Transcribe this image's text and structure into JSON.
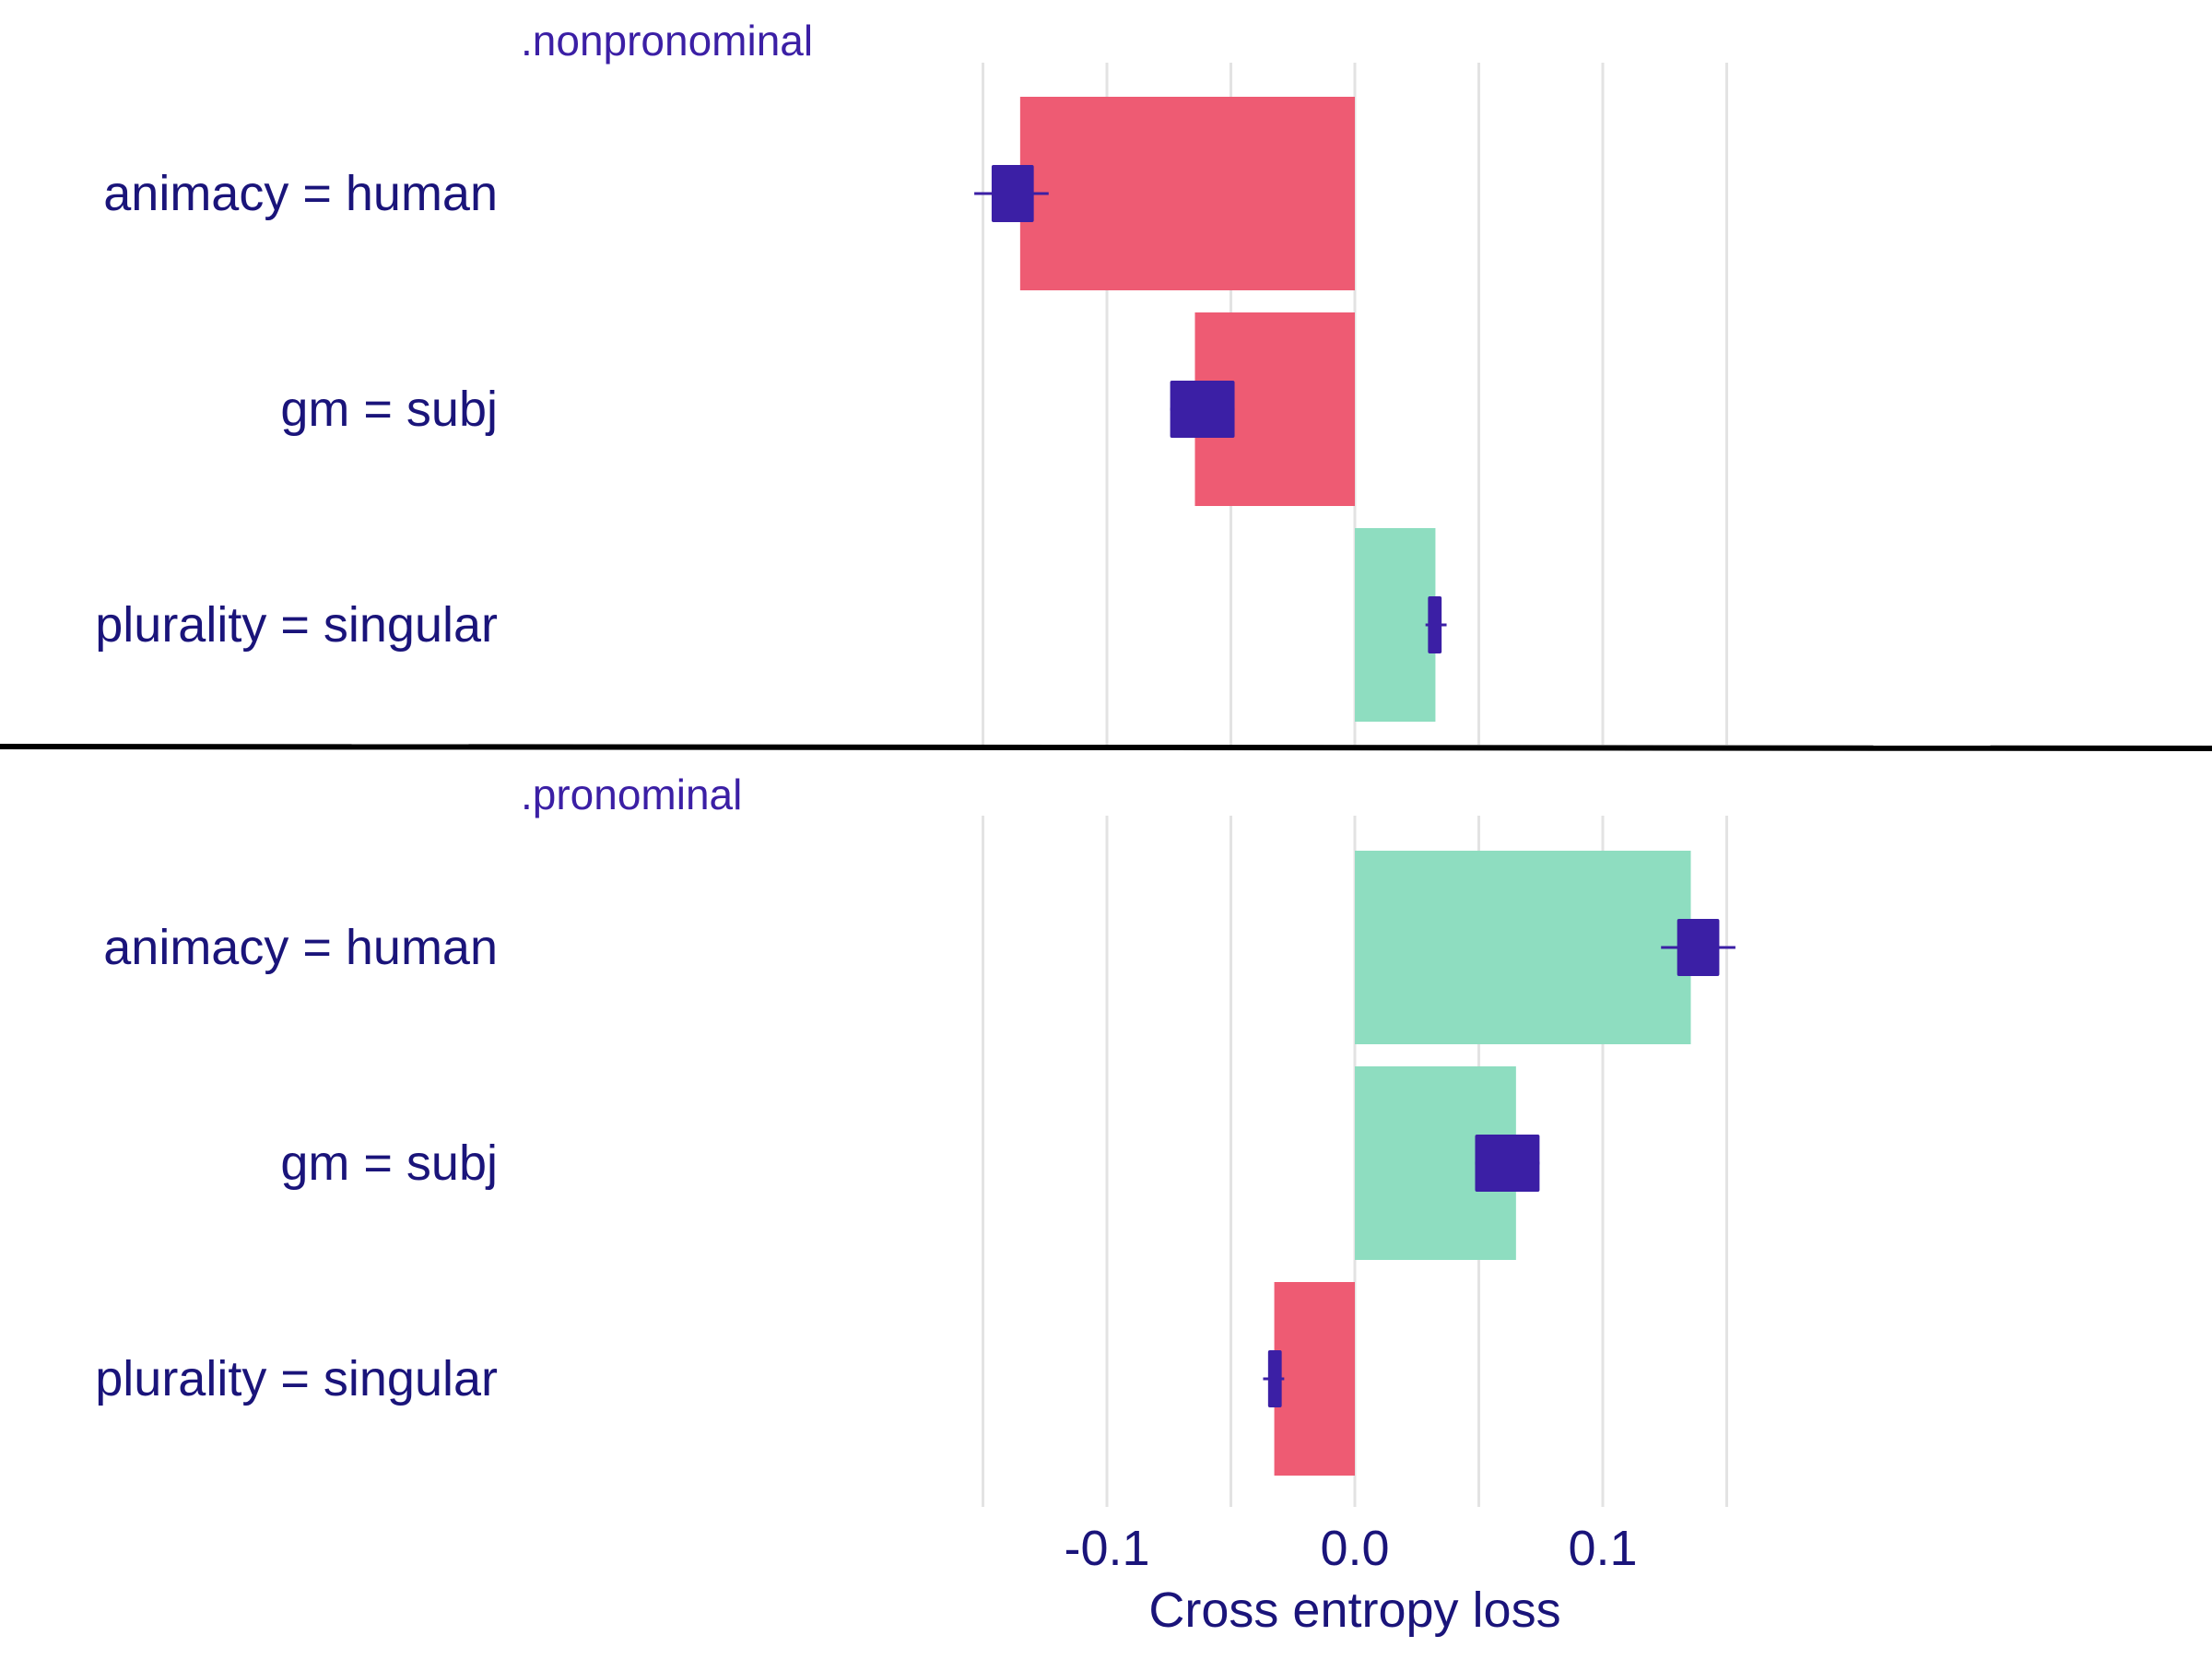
{
  "colors": {
    "negative": "#EE5B73",
    "positive": "#8EDDC0",
    "boxplot": "#3B1FA5",
    "label": "#1A147A",
    "facet_title": "#3B1FA5",
    "grid": "#E3E3E3",
    "divider": "#000000"
  },
  "chart_data": {
    "type": "bar",
    "orientation": "horizontal",
    "xlabel": "Cross entropy loss",
    "xlim": [
      -0.15,
      0.15
    ],
    "ticks": [
      {
        "value": -0.1,
        "label": "-0.1"
      },
      {
        "value": 0.0,
        "label": "0.0"
      },
      {
        "value": 0.1,
        "label": "0.1"
      }
    ],
    "minor_gridlines": [
      -0.15,
      -0.05,
      0.05,
      0.15
    ],
    "grid": true,
    "panels": [
      {
        "title": ".nonpronominal",
        "bars": [
          {
            "label": "animacy = human",
            "value": -0.135,
            "box": {
              "q1": -0.1465,
              "q3": -0.1295,
              "min": -0.1535,
              "max": -0.1235
            }
          },
          {
            "label": "gm = subj",
            "value": -0.0645,
            "box": {
              "q1": -0.0745,
              "q3": -0.0485,
              "min": -0.0745,
              "max": -0.0485
            }
          },
          {
            "label": "plurality = singular",
            "value": 0.0325,
            "box": {
              "q1": 0.0295,
              "q3": 0.035,
              "min": 0.0285,
              "max": 0.037
            }
          }
        ]
      },
      {
        "title": ".pronominal",
        "bars": [
          {
            "label": "animacy = human",
            "value": 0.1355,
            "box": {
              "q1": 0.13,
              "q3": 0.147,
              "min": 0.1235,
              "max": 0.1535
            }
          },
          {
            "label": "gm = subj",
            "value": 0.065,
            "box": {
              "q1": 0.0485,
              "q3": 0.0745,
              "min": 0.0485,
              "max": 0.0745
            }
          },
          {
            "label": "plurality = singular",
            "value": -0.0325,
            "box": {
              "q1": -0.035,
              "q3": -0.0295,
              "min": -0.037,
              "max": -0.0285
            }
          }
        ]
      }
    ]
  }
}
